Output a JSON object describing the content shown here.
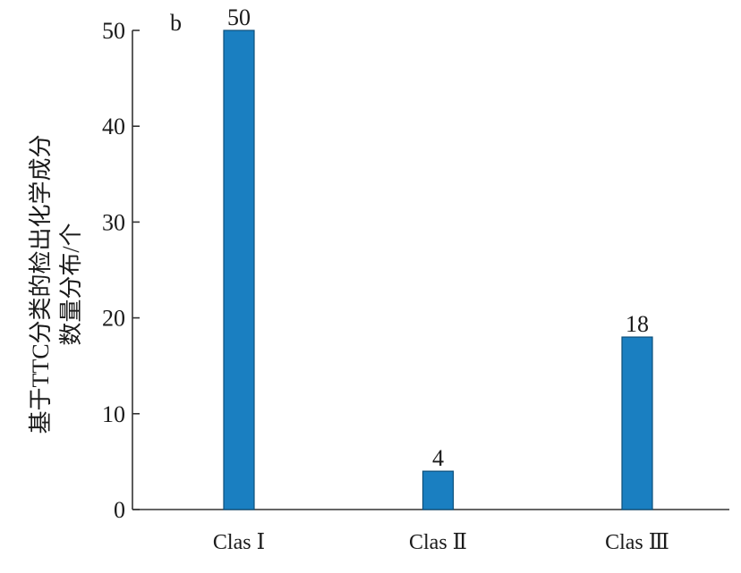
{
  "chart_data": {
    "type": "bar",
    "panel_label": "b",
    "categories": [
      "Clas Ⅰ",
      "Clas Ⅱ",
      "Clas Ⅲ"
    ],
    "values": [
      50,
      4,
      18
    ],
    "data_labels": [
      "50",
      "4",
      "18"
    ],
    "ylabel_lines": [
      "基于TTC分类的检出化学成分",
      "数量分布/个"
    ],
    "xlabel": "",
    "ylim": [
      0,
      50
    ],
    "yticks": [
      0,
      10,
      20,
      30,
      40,
      50
    ],
    "ytick_labels": [
      "0",
      "10",
      "20",
      "30",
      "40",
      "50"
    ],
    "grid": false,
    "colors": {
      "bar": "#1a7fc1",
      "bar_edge": "#0d4f7a",
      "axis": "#333333"
    }
  }
}
